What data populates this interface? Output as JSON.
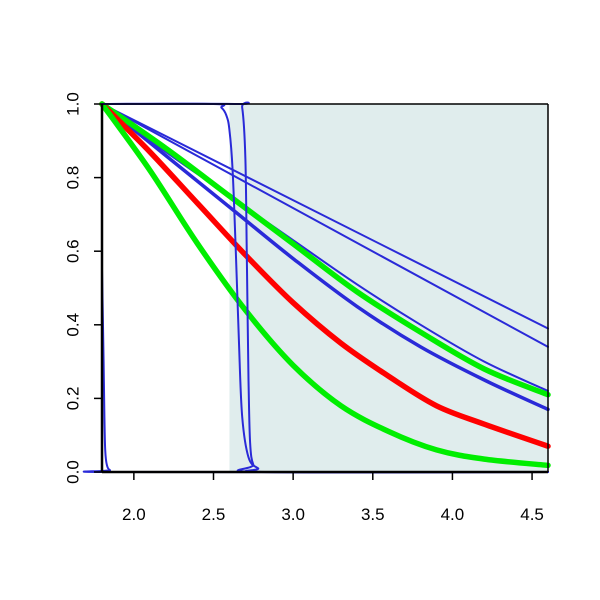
{
  "chart_data": {
    "type": "line",
    "title": "",
    "xlabel": "",
    "ylabel": "",
    "xlim": [
      1.8,
      4.6
    ],
    "ylim": [
      0,
      1
    ],
    "grid": false,
    "legend": "none",
    "x_ticks": [
      {
        "value": 2.0,
        "label": "2.0"
      },
      {
        "value": 2.5,
        "label": "2.5"
      },
      {
        "value": 3.0,
        "label": "3.0"
      },
      {
        "value": 3.5,
        "label": "3.5"
      },
      {
        "value": 4.0,
        "label": "4.0"
      },
      {
        "value": 4.5,
        "label": "4.5"
      }
    ],
    "y_ticks": [
      {
        "value": 0.0,
        "label": "0.0"
      },
      {
        "value": 0.2,
        "label": "0.2"
      },
      {
        "value": 0.4,
        "label": "0.4"
      },
      {
        "value": 0.6,
        "label": "0.6"
      },
      {
        "value": 0.8,
        "label": "0.8"
      },
      {
        "value": 1.0,
        "label": "1.0"
      }
    ],
    "shaded_region": {
      "x_from": 2.6,
      "x_to": 4.6,
      "color": "#e0eded"
    },
    "series": [
      {
        "color": "#2a2ad8",
        "style": "thin",
        "x": [
          1.8,
          4.6
        ],
        "y": [
          1.0,
          0.39
        ]
      },
      {
        "color": "#2a2ad8",
        "style": "thin",
        "x": [
          1.8,
          4.6
        ],
        "y": [
          1.0,
          0.34
        ]
      },
      {
        "color": "#2a2ad8",
        "style": "thin",
        "x": [
          1.8,
          2.2,
          2.6,
          3.0,
          3.4,
          3.8,
          4.2,
          4.6
        ],
        "y": [
          1.0,
          0.87,
          0.75,
          0.63,
          0.51,
          0.4,
          0.3,
          0.22
        ]
      },
      {
        "color": "#2a2ad8",
        "style": "medium",
        "x": [
          1.8,
          2.2,
          2.6,
          3.0,
          3.4,
          3.8,
          4.2,
          4.6
        ],
        "y": [
          1.0,
          0.86,
          0.72,
          0.58,
          0.45,
          0.34,
          0.25,
          0.17
        ]
      },
      {
        "color": "#00ee00",
        "style": "thick",
        "x": [
          1.8,
          2.2,
          2.6,
          3.0,
          3.4,
          3.8,
          4.2,
          4.6
        ],
        "y": [
          1.0,
          0.88,
          0.75,
          0.62,
          0.49,
          0.38,
          0.28,
          0.21
        ]
      },
      {
        "color": "#ff0000",
        "style": "thick",
        "x": [
          1.8,
          2.1,
          2.4,
          2.7,
          3.0,
          3.3,
          3.6,
          3.9,
          4.2,
          4.6
        ],
        "y": [
          1.0,
          0.87,
          0.73,
          0.59,
          0.46,
          0.35,
          0.26,
          0.18,
          0.13,
          0.07
        ]
      },
      {
        "color": "#00ee00",
        "style": "thick",
        "x": [
          1.8,
          2.1,
          2.4,
          2.7,
          3.0,
          3.3,
          3.6,
          3.9,
          4.2,
          4.6
        ],
        "y": [
          1.0,
          0.82,
          0.62,
          0.44,
          0.29,
          0.18,
          0.11,
          0.06,
          0.035,
          0.018
        ]
      },
      {
        "color": "#2a2ad8",
        "style": "thin",
        "x": [
          1.8,
          2.5,
          2.55,
          2.58,
          2.6,
          2.62,
          2.64,
          2.66,
          2.68,
          2.72,
          2.78,
          2.85,
          4.6
        ],
        "y": [
          1.0,
          1.0,
          0.99,
          0.97,
          0.93,
          0.82,
          0.6,
          0.35,
          0.15,
          0.04,
          0.01,
          0.0,
          0.0
        ]
      },
      {
        "color": "#2a2ad8",
        "style": "thin",
        "x": [
          1.8,
          2.65,
          2.68,
          2.7,
          2.71,
          2.72,
          2.73,
          2.75,
          2.8,
          4.6
        ],
        "y": [
          1.0,
          1.0,
          0.99,
          0.85,
          0.55,
          0.25,
          0.08,
          0.02,
          0.0,
          0.0
        ]
      },
      {
        "color": "#2a2ad8",
        "style": "thin",
        "x": [
          1.8,
          1.81,
          1.815,
          1.82,
          1.83,
          1.85,
          1.9,
          4.6
        ],
        "y": [
          0.55,
          0.3,
          0.15,
          0.06,
          0.02,
          0.005,
          0.0,
          0.0
        ]
      }
    ]
  }
}
